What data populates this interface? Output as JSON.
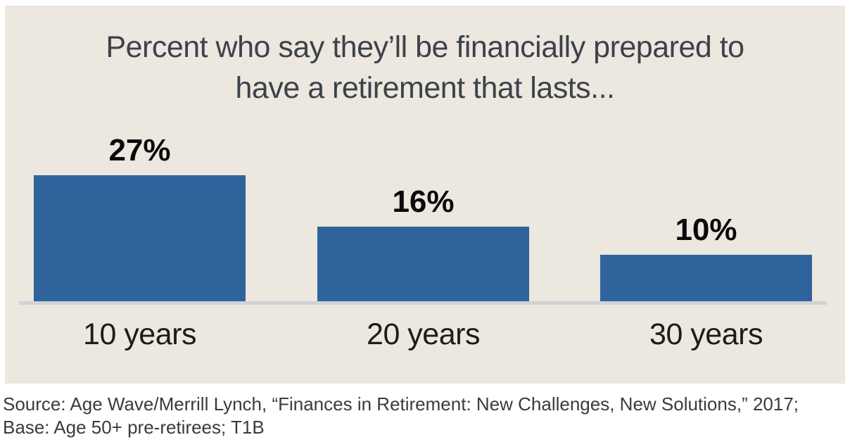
{
  "page": {
    "source_line1": "Source: Age Wave/Merrill Lynch, “Finances in Retirement: New Challenges, New Solutions,” 2017;",
    "source_line2": "Base: Age 50+ pre-retirees; T1B"
  },
  "chart_data": {
    "type": "bar",
    "title": "Percent who say they’ll be financially prepared to have a retirement that lasts...",
    "title_lines": [
      "Percent who say they’ll be financially prepared to",
      "have a retirement that lasts..."
    ],
    "categories": [
      "10 years",
      "20 years",
      "30 years"
    ],
    "values": [
      27,
      16,
      10
    ],
    "value_labels": [
      "27%",
      "16%",
      "10%"
    ],
    "ylabel": "",
    "xlabel": "",
    "unit": "percent",
    "ylim": [
      0,
      30
    ],
    "grid": false,
    "legend": false,
    "colors": {
      "bar": "#2f639c",
      "panel_background": "#ece7df",
      "axis_line": "#cfd3d4",
      "title_text": "#3d424a",
      "value_text": "#0a0a0a",
      "category_text": "#1c1c1c",
      "source_text": "#3a3b3d"
    }
  }
}
